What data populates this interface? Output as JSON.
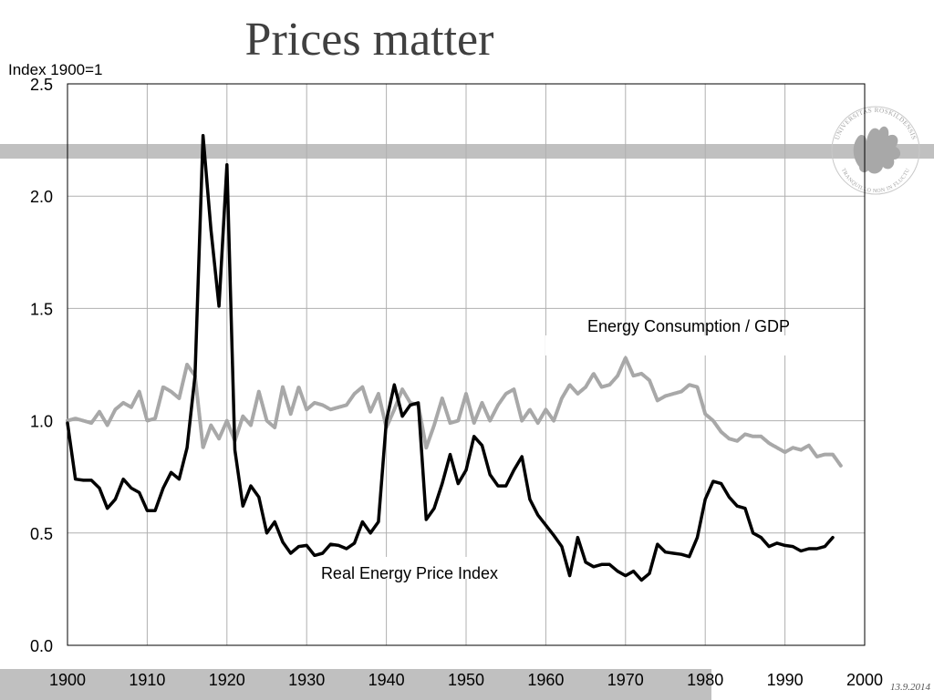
{
  "slide": {
    "title": "Prices matter",
    "date": "13.9.2014"
  },
  "logo": {
    "name": "university-seal-icon",
    "text_top": "UNIVERSITAS ROSKILDENSIS",
    "text_bottom": "TRANQUILLO NON IN FLUCTU"
  },
  "colors": {
    "band": "#c0c0c0",
    "price_line": "#000000",
    "consumption_line": "#a8a8a8",
    "grid": "#b0b0b0",
    "title": "#404040"
  },
  "chart_data": {
    "type": "line",
    "title": "",
    "xlabel": "",
    "ylabel": "Index 1900=1",
    "xlim": [
      1900,
      2000
    ],
    "ylim": [
      0,
      2.5
    ],
    "x_ticks": [
      "1900",
      "1910",
      "1920",
      "1930",
      "1940",
      "1950",
      "1960",
      "1970",
      "1980",
      "1990",
      "2000"
    ],
    "y_ticks": [
      "0.0",
      "0.5",
      "1.0",
      "1.5",
      "2.0",
      "2.5"
    ],
    "grid": true,
    "legend": "none",
    "series": [
      {
        "name": "Real Energy Price Index",
        "color": "#000000",
        "x": [
          1900,
          1901,
          1902,
          1903,
          1904,
          1905,
          1906,
          1907,
          1908,
          1909,
          1910,
          1911,
          1912,
          1913,
          1914,
          1915,
          1916,
          1917,
          1918,
          1919,
          1920,
          1921,
          1922,
          1923,
          1924,
          1925,
          1926,
          1927,
          1928,
          1929,
          1930,
          1931,
          1932,
          1933,
          1934,
          1935,
          1936,
          1937,
          1938,
          1939,
          1940,
          1941,
          1942,
          1943,
          1944,
          1945,
          1946,
          1947,
          1948,
          1949,
          1950,
          1951,
          1952,
          1953,
          1954,
          1955,
          1956,
          1957,
          1958,
          1959,
          1960,
          1961,
          1962,
          1963,
          1964,
          1965,
          1966,
          1967,
          1968,
          1969,
          1970,
          1971,
          1972,
          1973,
          1974,
          1975,
          1976,
          1977,
          1978,
          1979,
          1980,
          1981,
          1982,
          1983,
          1984,
          1985,
          1986,
          1987,
          1988,
          1989,
          1990,
          1991,
          1992,
          1993,
          1994,
          1995,
          1996
        ],
        "y": [
          0.99,
          0.74,
          0.735,
          0.735,
          0.7,
          0.61,
          0.65,
          0.74,
          0.7,
          0.68,
          0.6,
          0.6,
          0.7,
          0.77,
          0.74,
          0.88,
          1.2,
          2.27,
          1.85,
          1.51,
          2.14,
          0.87,
          0.62,
          0.71,
          0.66,
          0.5,
          0.55,
          0.46,
          0.41,
          0.44,
          0.445,
          0.4,
          0.41,
          0.45,
          0.445,
          0.43,
          0.455,
          0.55,
          0.5,
          0.55,
          1.0,
          1.16,
          1.02,
          1.07,
          1.08,
          0.56,
          0.61,
          0.72,
          0.85,
          0.72,
          0.78,
          0.93,
          0.89,
          0.76,
          0.71,
          0.71,
          0.78,
          0.84,
          0.65,
          0.58,
          0.535,
          0.49,
          0.44,
          0.31,
          0.48,
          0.37,
          0.35,
          0.36,
          0.36,
          0.33,
          0.31,
          0.33,
          0.29,
          0.32,
          0.45,
          0.415,
          0.41,
          0.405,
          0.395,
          0.48,
          0.65,
          0.73,
          0.72,
          0.66,
          0.62,
          0.61,
          0.5,
          0.48,
          0.44,
          0.455,
          0.445,
          0.44,
          0.42,
          0.43,
          0.43,
          0.44,
          0.48
        ]
      },
      {
        "name": "Energy Consumption / GDP",
        "color": "#a8a8a8",
        "x": [
          1900,
          1901,
          1902,
          1903,
          1904,
          1905,
          1906,
          1907,
          1908,
          1909,
          1910,
          1911,
          1912,
          1913,
          1914,
          1915,
          1916,
          1917,
          1918,
          1919,
          1920,
          1921,
          1922,
          1923,
          1924,
          1925,
          1926,
          1927,
          1928,
          1929,
          1930,
          1931,
          1932,
          1933,
          1934,
          1935,
          1936,
          1937,
          1938,
          1939,
          1940,
          1941,
          1942,
          1943,
          1944,
          1945,
          1946,
          1947,
          1948,
          1949,
          1950,
          1951,
          1952,
          1953,
          1954,
          1955,
          1956,
          1957,
          1958,
          1959,
          1960,
          1961,
          1962,
          1963,
          1964,
          1965,
          1966,
          1967,
          1968,
          1969,
          1970,
          1971,
          1972,
          1973,
          1974,
          1975,
          1976,
          1977,
          1978,
          1979,
          1980,
          1981,
          1982,
          1983,
          1984,
          1985,
          1986,
          1987,
          1988,
          1989,
          1990,
          1991,
          1992,
          1993,
          1994,
          1995,
          1996,
          1997
        ],
        "y": [
          1.0,
          1.01,
          1.0,
          0.99,
          1.04,
          0.98,
          1.05,
          1.08,
          1.06,
          1.13,
          1.0,
          1.01,
          1.15,
          1.13,
          1.1,
          1.25,
          1.2,
          0.88,
          0.98,
          0.92,
          1.0,
          0.91,
          1.02,
          0.98,
          1.13,
          1.0,
          0.97,
          1.15,
          1.03,
          1.15,
          1.05,
          1.08,
          1.07,
          1.05,
          1.06,
          1.07,
          1.12,
          1.15,
          1.04,
          1.12,
          0.97,
          1.05,
          1.14,
          1.08,
          1.07,
          0.88,
          0.98,
          1.1,
          0.99,
          1.0,
          1.12,
          0.99,
          1.08,
          1.0,
          1.07,
          1.12,
          1.14,
          1.0,
          1.05,
          0.99,
          1.05,
          1.0,
          1.1,
          1.16,
          1.12,
          1.15,
          1.21,
          1.15,
          1.16,
          1.2,
          1.28,
          1.2,
          1.21,
          1.18,
          1.09,
          1.11,
          1.12,
          1.13,
          1.16,
          1.15,
          1.03,
          1.0,
          0.95,
          0.92,
          0.91,
          0.94,
          0.93,
          0.93,
          0.9,
          0.88,
          0.86,
          0.88,
          0.87,
          0.89,
          0.84,
          0.85,
          0.85,
          0.8
        ]
      }
    ],
    "annotations": [
      {
        "text": "Energy Consumption / GDP",
        "x": 1983,
        "y": 1.4
      },
      {
        "text": "Real Energy Price Index",
        "x": 1939,
        "y": 0.31
      }
    ]
  }
}
